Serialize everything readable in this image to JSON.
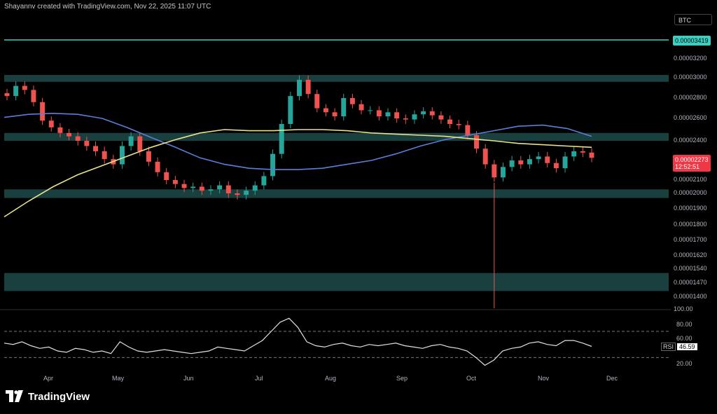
{
  "attribution": "Shayannv created with TradingView.com, Nov 22, 2025 11:07 UTC",
  "symbol": "BTC",
  "brand": "TradingView",
  "price_axis": {
    "ticks": [
      "0.00003200",
      "0.00003000",
      "0.00002800",
      "0.00002600",
      "0.00002400",
      "0.00002100",
      "0.00002000",
      "0.00001900",
      "0.00001800",
      "0.00001700",
      "0.00001620",
      "0.00001540",
      "0.00001470",
      "0.00001400",
      "100.00"
    ],
    "resistance_label": "0.00003419",
    "last_price": "0.00002273",
    "countdown": "12:52:51"
  },
  "rsi": {
    "name": "RSI",
    "value": "46.59",
    "ticks": [
      "80.00",
      "60.00",
      "20.00"
    ]
  },
  "months": [
    "Apr",
    "May",
    "Jun",
    "Jul",
    "Aug",
    "Sep",
    "Oct",
    "Nov",
    "Dec"
  ],
  "colors": {
    "background": "#000000",
    "zone": "#1e4a4a",
    "resistance_line": "#3ad1c2",
    "ma_blue": "#5b7fd8",
    "ma_yellow": "#e9e28a",
    "up_candle": "#26a69a",
    "down_candle": "#ef5350",
    "rsi_line": "#e0e0e0",
    "last_price": "#f23645"
  },
  "chart_data": {
    "type": "candlestick",
    "symbol": "BTC",
    "x": [
      "Apr",
      "May",
      "Jun",
      "Jul",
      "Aug",
      "Sep",
      "Oct",
      "Nov",
      "Dec"
    ],
    "zones": [
      {
        "from": 2.96e-05,
        "to": 3.03e-05
      },
      {
        "from": 2.4e-05,
        "to": 2.47e-05
      },
      {
        "from": 1.97e-05,
        "to": 2.03e-05
      },
      {
        "from": 1.43e-05,
        "to": 1.52e-05
      }
    ],
    "resistance_level": 3.419e-05,
    "close_series": [
      2.82e-05,
      2.92e-05,
      2.88e-05,
      2.76e-05,
      2.58e-05,
      2.52e-05,
      2.47e-05,
      2.44e-05,
      2.4e-05,
      2.36e-05,
      2.32e-05,
      2.26e-05,
      2.22e-05,
      2.36e-05,
      2.44e-05,
      2.32e-05,
      2.24e-05,
      2.16e-05,
      2.1e-05,
      2.07e-05,
      2.04e-05,
      2.05e-05,
      2.02e-05,
      2.03e-05,
      2.06e-05,
      2e-05,
      1.99e-05,
      2.02e-05,
      2.06e-05,
      2.13e-05,
      2.3e-05,
      2.55e-05,
      2.82e-05,
      2.98e-05,
      2.84e-05,
      2.7e-05,
      2.66e-05,
      2.62e-05,
      2.8e-05,
      2.74e-05,
      2.68e-05,
      2.68e-05,
      2.62e-05,
      2.66e-05,
      2.6e-05,
      2.59e-05,
      2.64e-05,
      2.67e-05,
      2.63e-05,
      2.59e-05,
      2.55e-05,
      2.54e-05,
      2.45e-05,
      2.34e-05,
      2.22e-05,
      2.12e-05,
      2.2e-05,
      2.25e-05,
      2.22e-05,
      2.26e-05,
      2.28e-05,
      2.23e-05,
      2.19e-05,
      2.28e-05,
      2.32e-05,
      2.31e-05,
      2.27e-05
    ],
    "ma_blue": [
      2.61e-05,
      2.64e-05,
      2.65e-05,
      2.64e-05,
      2.6e-05,
      2.52e-05,
      2.43e-05,
      2.35e-05,
      2.27e-05,
      2.22e-05,
      2.19e-05,
      2.18e-05,
      2.18e-05,
      2.19e-05,
      2.22e-05,
      2.25e-05,
      2.3e-05,
      2.36e-05,
      2.41e-05,
      2.45e-05,
      2.49e-05,
      2.53e-05,
      2.54e-05,
      2.51e-05,
      2.44e-05
    ],
    "ma_yellow": [
      1.85e-05,
      1.95e-05,
      2.05e-05,
      2.14e-05,
      2.21e-05,
      2.28e-05,
      2.35e-05,
      2.41e-05,
      2.47e-05,
      2.5e-05,
      2.49e-05,
      2.49e-05,
      2.5e-05,
      2.5e-05,
      2.49e-05,
      2.47e-05,
      2.46e-05,
      2.45e-05,
      2.44e-05,
      2.42e-05,
      2.4e-05,
      2.38e-05,
      2.37e-05,
      2.36e-05,
      2.35e-05
    ],
    "wick_low": {
      "month": "Oct",
      "value": 1.36e-05
    },
    "last_price": 2.273e-05,
    "rsi": {
      "current": 46.59,
      "levels": [
        70,
        30
      ],
      "ylim": [
        10,
        100
      ],
      "values": [
        52,
        50,
        54,
        48,
        44,
        46,
        40,
        38,
        44,
        42,
        38,
        40,
        36,
        54,
        46,
        40,
        38,
        40,
        42,
        40,
        38,
        36,
        38,
        40,
        46,
        44,
        42,
        40,
        48,
        56,
        70,
        84,
        90,
        76,
        54,
        48,
        46,
        50,
        52,
        48,
        46,
        50,
        48,
        50,
        52,
        48,
        46,
        44,
        48,
        50,
        46,
        44,
        40,
        30,
        18,
        26,
        40,
        44,
        46,
        52,
        54,
        50,
        48,
        56,
        56,
        52,
        47
      ]
    }
  }
}
